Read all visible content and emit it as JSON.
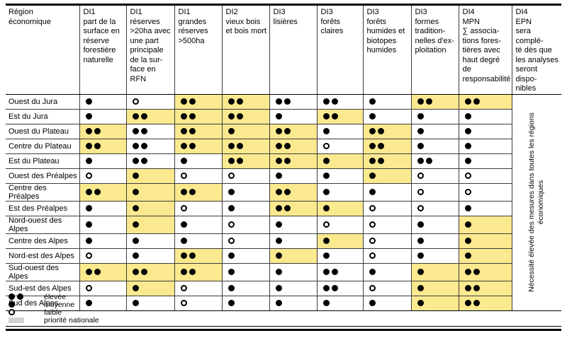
{
  "table": {
    "region_header": "Région\néconomique",
    "columns": [
      "DI1\npart de la\nsurface en\nréserve\nforestière\nnaturelle",
      "DI1\nréserves\n>20ha avec\nune part\nprincipale\nde la sur-\nface en RFN",
      "DI1\ngrandes\nréserves\n>500ha",
      "DI2\nvieux bois\net bois mort",
      "DI3\nlisières",
      "DI3\nforêts\nclaires",
      "DI3\nforêts\nhumides et\nbiotopes\nhumides",
      "DI3\nformes\ntradition-\nnelles d'ex-\nploitation",
      "DI4\nMPN\n∑ associa-\ntions fores-\ntières avec\nhaut degré de\nresponsabilité",
      "DI4\nEPN\nsera complé-\nté dès que\nles analyses\nseront dispo-\nnibles"
    ],
    "epn_note": "Nécessité élevée des mesures dans toutes les régions économiques",
    "rows": [
      {
        "region": "Ouest du Jura",
        "cells": [
          [
            "●",
            0
          ],
          [
            "○",
            0
          ],
          [
            "●●",
            1
          ],
          [
            "●●",
            1
          ],
          [
            "●●",
            0
          ],
          [
            "●●",
            0
          ],
          [
            "●",
            0
          ],
          [
            "●●",
            1
          ],
          [
            "●●",
            1
          ]
        ]
      },
      {
        "region": "Est du Jura",
        "cells": [
          [
            "●",
            0
          ],
          [
            "●●",
            1
          ],
          [
            "●●",
            1
          ],
          [
            "●●",
            1
          ],
          [
            "●",
            0
          ],
          [
            "●●",
            1
          ],
          [
            "●",
            0
          ],
          [
            "●",
            0
          ],
          [
            "●",
            0
          ]
        ]
      },
      {
        "region": "Ouest du Plateau",
        "cells": [
          [
            "●●",
            1
          ],
          [
            "●●",
            0
          ],
          [
            "●●",
            1
          ],
          [
            "●",
            1
          ],
          [
            "●●",
            1
          ],
          [
            "●",
            0
          ],
          [
            "●●",
            1
          ],
          [
            "●",
            0
          ],
          [
            "●",
            0
          ]
        ]
      },
      {
        "region": "Centre du Plateau",
        "cells": [
          [
            "●●",
            1
          ],
          [
            "●●",
            0
          ],
          [
            "●●",
            1
          ],
          [
            "●●",
            1
          ],
          [
            "●●",
            1
          ],
          [
            "○",
            0
          ],
          [
            "●●",
            1
          ],
          [
            "●",
            0
          ],
          [
            "●",
            0
          ]
        ]
      },
      {
        "region": "Est du Plateau",
        "cells": [
          [
            "●",
            0
          ],
          [
            "●●",
            0
          ],
          [
            "●",
            0
          ],
          [
            "●●",
            1
          ],
          [
            "●●",
            1
          ],
          [
            "●",
            1
          ],
          [
            "●●",
            1
          ],
          [
            "●●",
            0
          ],
          [
            "●",
            0
          ]
        ]
      },
      {
        "region": "Ouest des Préalpes",
        "cells": [
          [
            "○",
            0
          ],
          [
            "●",
            1
          ],
          [
            "○",
            0
          ],
          [
            "○",
            0
          ],
          [
            "●",
            0
          ],
          [
            "●",
            0
          ],
          [
            "●",
            1
          ],
          [
            "○",
            0
          ],
          [
            "○",
            0
          ]
        ]
      },
      {
        "region": "Centre des Préalpes",
        "cells": [
          [
            "●●",
            1
          ],
          [
            "●",
            1
          ],
          [
            "●●",
            1
          ],
          [
            "●",
            0
          ],
          [
            "●●",
            1
          ],
          [
            "●",
            0
          ],
          [
            "●",
            0
          ],
          [
            "○",
            0
          ],
          [
            "○",
            0
          ]
        ]
      },
      {
        "region": "Est des Préalpes",
        "cells": [
          [
            "●",
            0
          ],
          [
            "●",
            1
          ],
          [
            "○",
            0
          ],
          [
            "●",
            0
          ],
          [
            "●●",
            1
          ],
          [
            "●",
            1
          ],
          [
            "○",
            0
          ],
          [
            "○",
            0
          ],
          [
            "●",
            0
          ]
        ]
      },
      {
        "region": "Nord-ouest des Alpes",
        "cells": [
          [
            "●",
            0
          ],
          [
            "●",
            1
          ],
          [
            "●",
            0
          ],
          [
            "○",
            0
          ],
          [
            "●",
            0
          ],
          [
            "○",
            0
          ],
          [
            "○",
            0
          ],
          [
            "●",
            0
          ],
          [
            "●",
            1
          ]
        ]
      },
      {
        "region": "Centre des Alpes",
        "cells": [
          [
            "●",
            0
          ],
          [
            "●",
            0
          ],
          [
            "●",
            0
          ],
          [
            "○",
            0
          ],
          [
            "●",
            0
          ],
          [
            "●",
            1
          ],
          [
            "○",
            0
          ],
          [
            "●",
            0
          ],
          [
            "●",
            1
          ]
        ]
      },
      {
        "region": "Nord-est des Alpes",
        "cells": [
          [
            "○",
            0
          ],
          [
            "●",
            0
          ],
          [
            "●●",
            1
          ],
          [
            "●",
            0
          ],
          [
            "●",
            1
          ],
          [
            "●",
            0
          ],
          [
            "○",
            0
          ],
          [
            "●",
            0
          ],
          [
            "●",
            1
          ]
        ]
      },
      {
        "region": "Sud-ouest des Alpes",
        "cells": [
          [
            "●●",
            1
          ],
          [
            "●●",
            1
          ],
          [
            "●●",
            1
          ],
          [
            "●",
            0
          ],
          [
            "●",
            0
          ],
          [
            "●●",
            0
          ],
          [
            "●",
            0
          ],
          [
            "●",
            1
          ],
          [
            "●●",
            1
          ]
        ]
      },
      {
        "region": "Sud-est des Alpes",
        "cells": [
          [
            "○",
            0
          ],
          [
            "●",
            1
          ],
          [
            "○",
            0
          ],
          [
            "●",
            0
          ],
          [
            "●",
            0
          ],
          [
            "●●",
            0
          ],
          [
            "○",
            0
          ],
          [
            "●",
            1
          ],
          [
            "●●",
            1
          ]
        ]
      },
      {
        "region": "Sud des Alpes",
        "cells": [
          [
            "●",
            0
          ],
          [
            "●",
            0
          ],
          [
            "○",
            0
          ],
          [
            "●",
            0
          ],
          [
            "●",
            0
          ],
          [
            "●",
            0
          ],
          [
            "●",
            0
          ],
          [
            "●",
            1
          ],
          [
            "●●",
            1
          ]
        ]
      }
    ]
  },
  "legend": {
    "items": [
      {
        "symbol": "●●",
        "label": "élevée"
      },
      {
        "symbol": "●",
        "label": "moyenne"
      },
      {
        "symbol": "○",
        "label": "faible"
      },
      {
        "symbol": "swatch",
        "label": "priorité nationale"
      }
    ]
  },
  "colors": {
    "national_highlight": "#fbe98f",
    "legend_swatch": "#d2d2d2"
  }
}
